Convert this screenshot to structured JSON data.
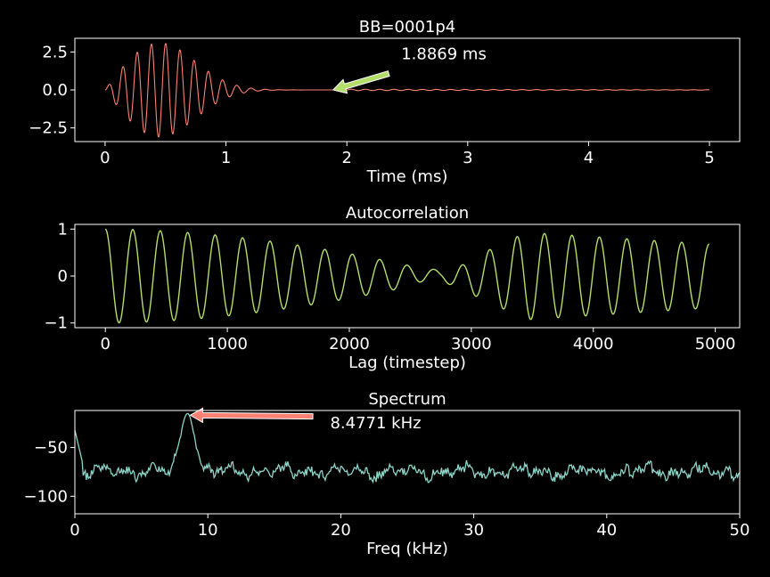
{
  "colors": {
    "background": "#000000",
    "axes": "#ffffff",
    "signal": "#fa8174",
    "autocorr": "#b3de69",
    "spectrum": "#8dd3c7",
    "arrow1": "#b3de69",
    "arrow2": "#fa8174"
  },
  "chart_data": [
    {
      "type": "line",
      "title": "BB=0001p4",
      "xlabel": "Time (ms)",
      "ylabel": "",
      "xlim": [
        -0.25,
        5.25
      ],
      "ylim": [
        -3.4,
        3.4
      ],
      "xticks": [
        0,
        1,
        2,
        3,
        4,
        5
      ],
      "xtick_labels": [
        "0",
        "1",
        "2",
        "3",
        "4",
        "5"
      ],
      "yticks": [
        -2.5,
        0,
        2.5
      ],
      "ytick_labels": [
        "−2.5",
        "0.0",
        "2.5"
      ],
      "grid": false,
      "signal_model": {
        "frequency_khz": 8.4771,
        "peak_amplitude": 3.1,
        "peak_time_ms": 0.45,
        "start_ms": 0,
        "end_ms": 5,
        "decay_ms": 0.42,
        "residual_amplitude": 0.05
      },
      "annotation": {
        "text": "1.8869 ms",
        "x": 1.8869,
        "y": 0.0,
        "text_x": 2.45,
        "text_y": 1.9
      }
    },
    {
      "type": "line",
      "title": "Autocorrelation",
      "xlabel": "Lag (timestep)",
      "ylabel": "",
      "xlim": [
        -250,
        5200
      ],
      "ylim": [
        -1.1,
        1.1
      ],
      "xticks": [
        0,
        1000,
        2000,
        3000,
        4000,
        5000
      ],
      "xtick_labels": [
        "0",
        "1000",
        "2000",
        "3000",
        "4000",
        "5000"
      ],
      "yticks": [
        -1,
        0,
        1
      ],
      "ytick_labels": [
        "−1",
        "0",
        "1"
      ],
      "grid": false,
      "period_samples": 225,
      "lag_range": [
        0,
        4950
      ]
    },
    {
      "type": "line",
      "title": "Spectrum",
      "xlabel": "Freq (kHz)",
      "ylabel": "",
      "xlim": [
        0,
        50
      ],
      "ylim": [
        -118,
        -12
      ],
      "xticks": [
        0,
        10,
        20,
        30,
        40,
        50
      ],
      "xtick_labels": [
        "0",
        "10",
        "20",
        "30",
        "40",
        "50"
      ],
      "yticks": [
        -100,
        -50
      ],
      "ytick_labels": [
        "−100",
        "−50"
      ],
      "grid": false,
      "peak": {
        "freq_khz": 8.4771,
        "level": -15
      },
      "annotation": {
        "text": "8.4771 kHz",
        "x": 8.4771,
        "y": -15,
        "text_x": 19.2,
        "text_y": -24
      }
    }
  ]
}
